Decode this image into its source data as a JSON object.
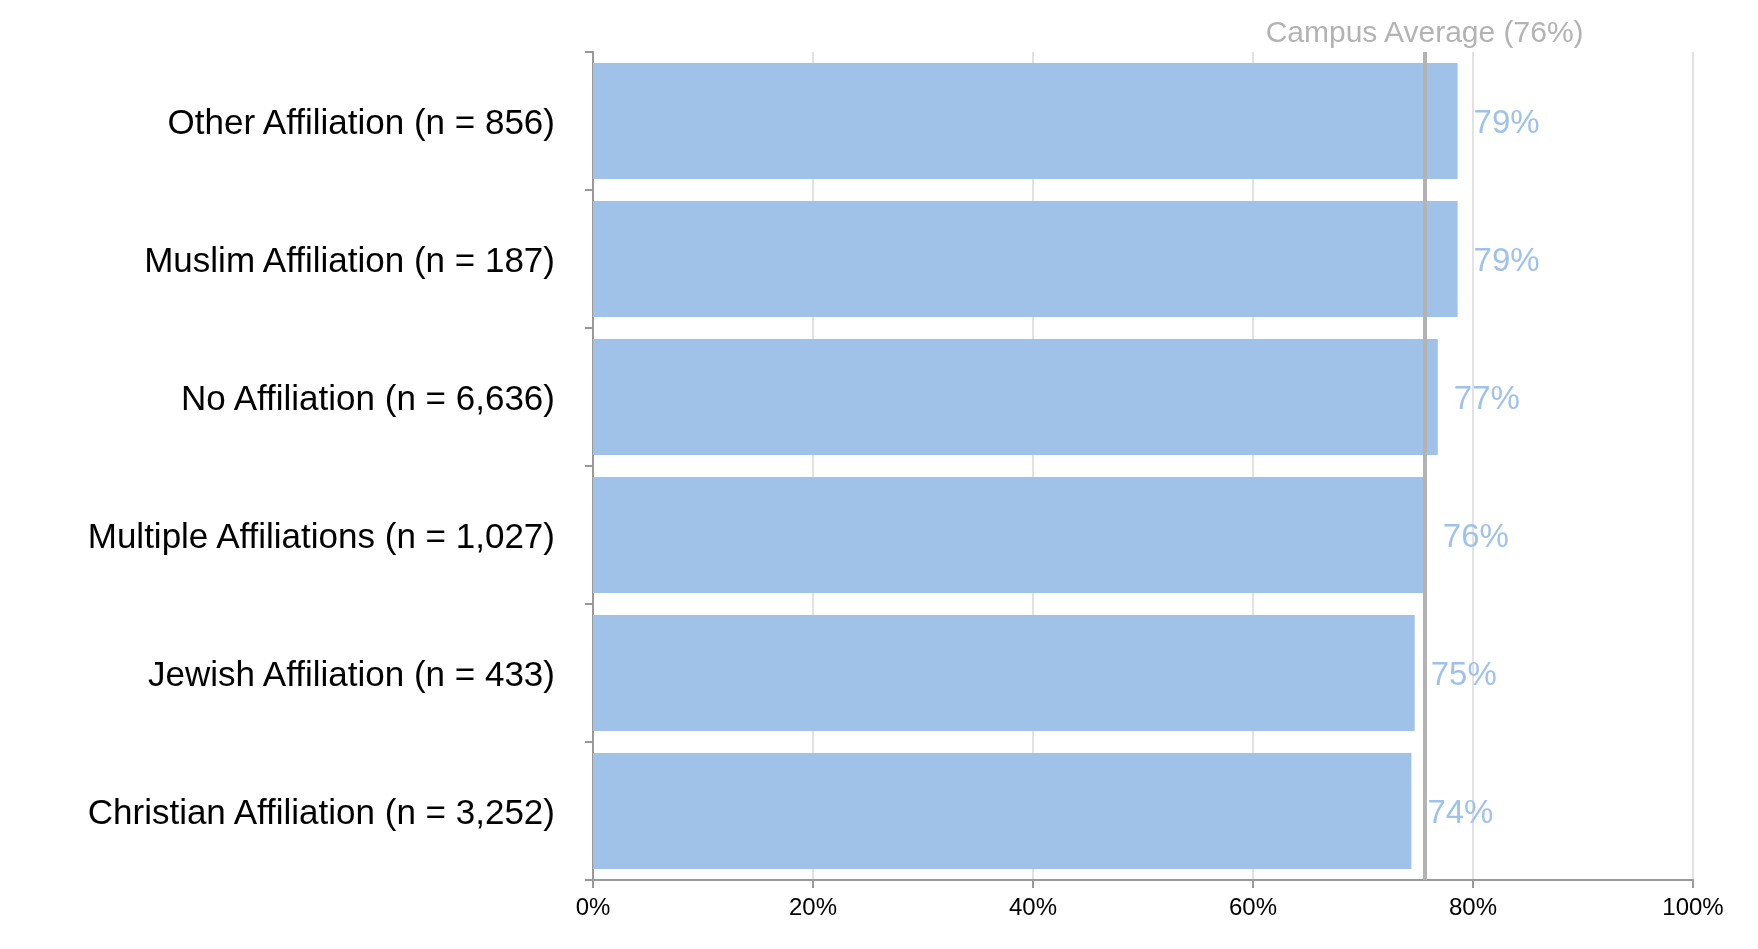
{
  "chart_data": {
    "type": "bar",
    "orientation": "horizontal",
    "categories": [
      "Other Affiliation (n = 856)",
      "Muslim Affiliation (n = 187)",
      "No Affiliation (n = 6,636)",
      "Multiple Affiliations (n = 1,027)",
      "Jewish Affiliation (n = 433)",
      "Christian Affiliation (n = 3,252)"
    ],
    "values": [
      78.6,
      78.6,
      76.8,
      75.8,
      74.7,
      74.4
    ],
    "value_labels": [
      "79%",
      "79%",
      "77%",
      "76%",
      "75%",
      "74%"
    ],
    "color": "#a0c2e9",
    "xlim": [
      0,
      100
    ],
    "xticks": [
      {
        "value": 0,
        "label": "0%"
      },
      {
        "value": 20,
        "label": "20%"
      },
      {
        "value": 40,
        "label": "40%"
      },
      {
        "value": 60,
        "label": "60%"
      },
      {
        "value": 80,
        "label": "80%"
      },
      {
        "value": 100,
        "label": "100%"
      }
    ],
    "grid": "x",
    "ref_lines": [
      {
        "axis": "x",
        "value": 75.6,
        "label": "Campus Average (76%)",
        "color": "#b3b3b3",
        "line_style": "solid"
      }
    ]
  }
}
